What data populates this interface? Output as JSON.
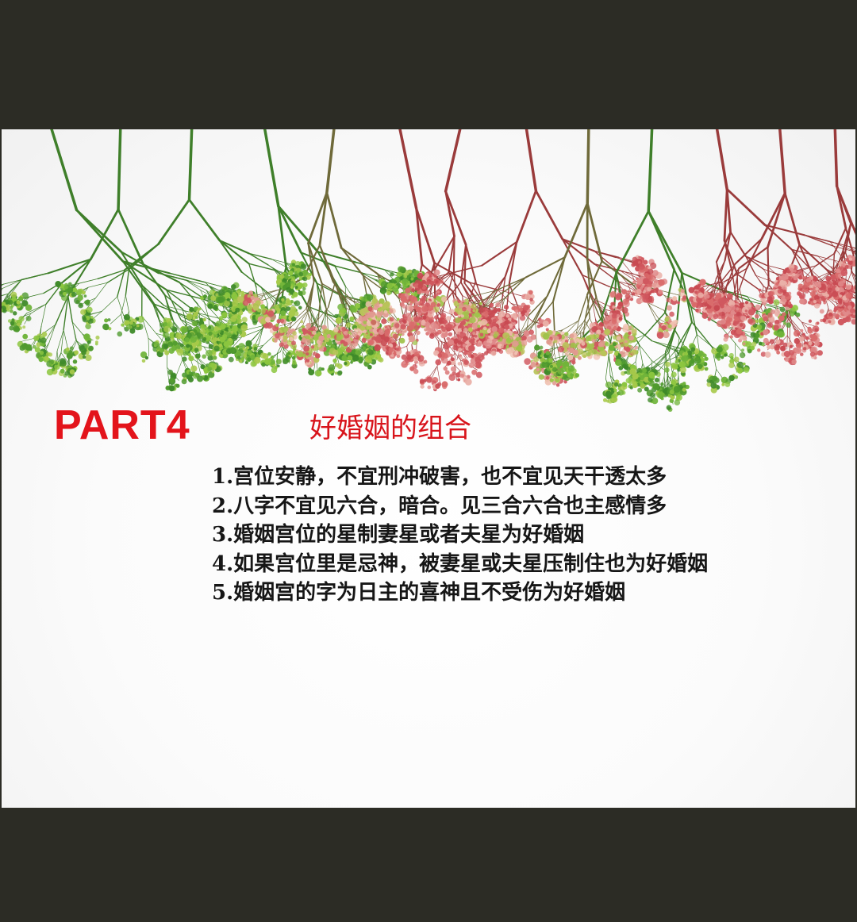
{
  "slide": {
    "part_label": "PART4",
    "section_title": "好婚姻的组合",
    "points": [
      "1.宫位安静，不宜刑冲破害，也不宜见天干透太多",
      "2.八字不宜见六合，暗合。见三合六合也主感情多",
      "3.婚姻宫位的星制妻星或者夫星为好婚姻",
      "4.如果宫位里是忌神，被妻星或夫星压制住也为好婚姻",
      "5.婚姻宫的字为日主的喜神且不受伤为好婚姻"
    ]
  },
  "colors": {
    "outer_background": "#2c2c25",
    "accent_red": "#e3141b",
    "text_dark": "#161616",
    "branch_green": "#3f8a2a",
    "branch_red": "#b53a3a"
  },
  "decoration": {
    "image": "hanging-gypsophila-branches"
  }
}
